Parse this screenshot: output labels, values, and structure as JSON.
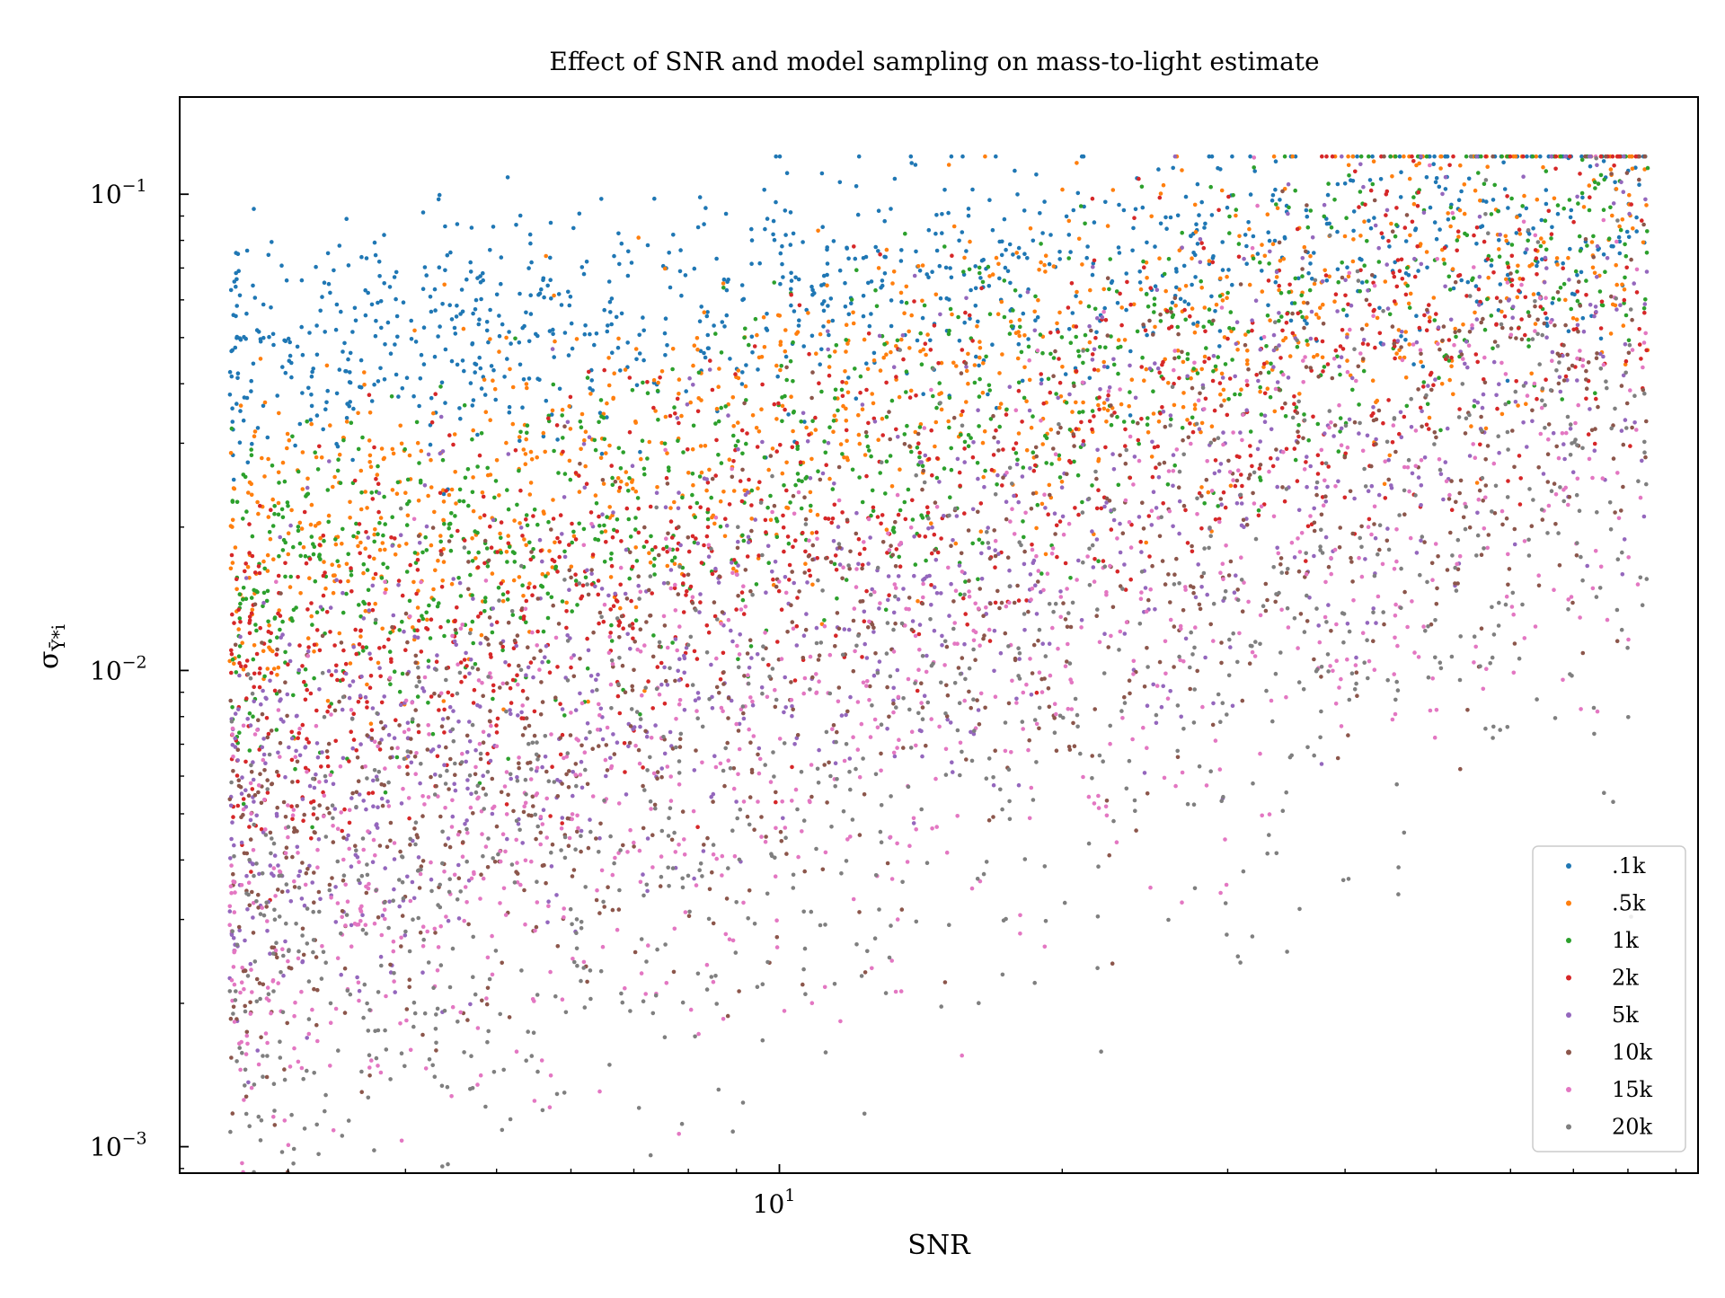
{
  "chart_data": {
    "type": "scatter",
    "title": "Effect of SNR and model sampling on mass-to-light estimate",
    "xlabel": "SNR",
    "ylabel": "σ",
    "ylabel_subscript": "Ῡ*i",
    "xscale": "log",
    "yscale": "log",
    "xlim": [
      2.3,
      95
    ],
    "ylim": [
      0.00088,
      0.16
    ],
    "x_tick_labels": [
      {
        "value": 10,
        "base": "10",
        "exp": "1"
      }
    ],
    "y_tick_labels": [
      {
        "value": 0.001,
        "base": "10",
        "exp": "−3"
      },
      {
        "value": 0.01,
        "base": "10",
        "exp": "−2"
      },
      {
        "value": 0.1,
        "base": "10",
        "exp": "−1"
      }
    ],
    "x_minor_ticks": [
      3,
      4,
      5,
      6,
      7,
      8,
      9,
      20,
      30,
      40,
      50,
      60,
      70,
      80,
      90
    ],
    "grid": false,
    "legend_position": "lower right",
    "points_per_series": 1000,
    "snr_range": [
      2.6,
      84
    ],
    "series": [
      {
        "name": ".1k",
        "color": "#1f77b4",
        "sigma_at_snr_3": 0.048,
        "sigma_at_snr_80": 0.095,
        "scatter_dex": 0.13
      },
      {
        "name": ".5k",
        "color": "#ff7f0e",
        "sigma_at_snr_3": 0.018,
        "sigma_at_snr_80": 0.09,
        "scatter_dex": 0.17
      },
      {
        "name": "1k",
        "color": "#2ca02c",
        "sigma_at_snr_3": 0.014,
        "sigma_at_snr_80": 0.085,
        "scatter_dex": 0.17
      },
      {
        "name": "2k",
        "color": "#d62728",
        "sigma_at_snr_3": 0.0095,
        "sigma_at_snr_80": 0.075,
        "scatter_dex": 0.2
      },
      {
        "name": "5k",
        "color": "#9467bd",
        "sigma_at_snr_3": 0.0055,
        "sigma_at_snr_80": 0.055,
        "scatter_dex": 0.25
      },
      {
        "name": "10k",
        "color": "#8c564b",
        "sigma_at_snr_3": 0.0042,
        "sigma_at_snr_80": 0.045,
        "scatter_dex": 0.27
      },
      {
        "name": "15k",
        "color": "#e377c2",
        "sigma_at_snr_3": 0.003,
        "sigma_at_snr_80": 0.033,
        "scatter_dex": 0.28
      },
      {
        "name": "20k",
        "color": "#7f7f7f",
        "sigma_at_snr_3": 0.0024,
        "sigma_at_snr_80": 0.024,
        "scatter_dex": 0.3
      }
    ]
  }
}
